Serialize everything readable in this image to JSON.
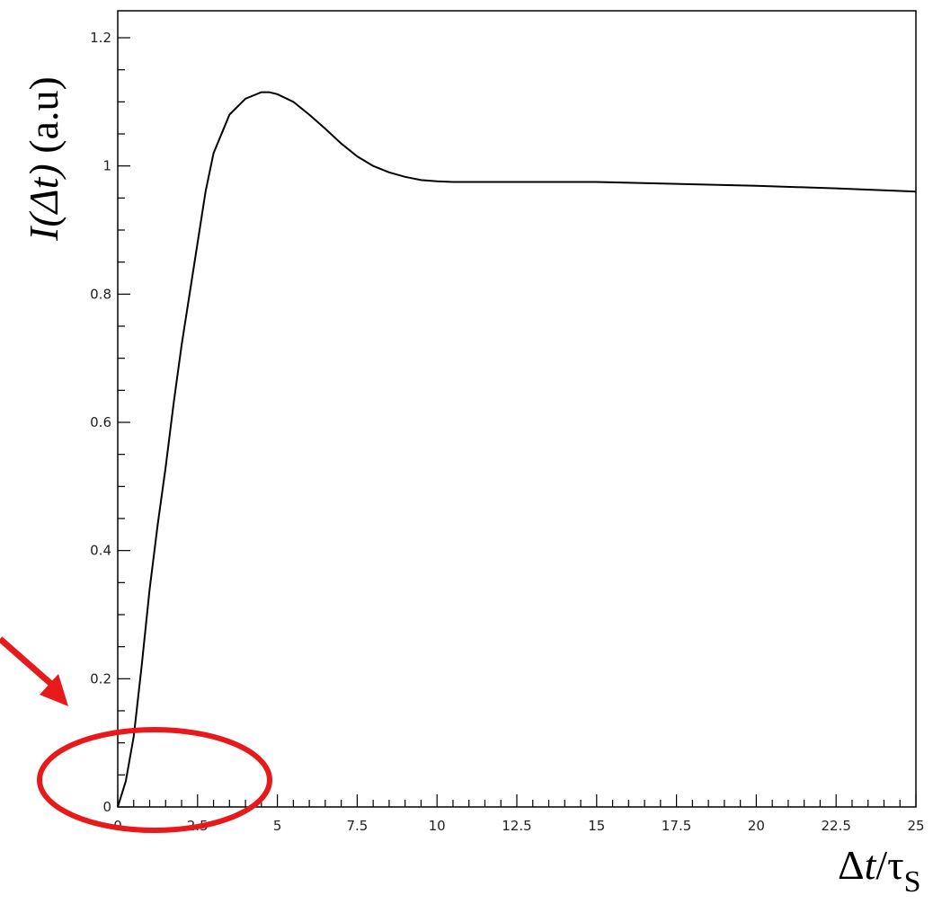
{
  "chart_data": {
    "type": "line",
    "title": "",
    "xlabel": {
      "symbol": "Δ",
      "var": "t",
      "slash": "/τ",
      "sub": "S"
    },
    "ylabel": {
      "prefix": "I(Δ",
      "var": "t",
      "suffix": ")",
      "units": " (a.u)"
    },
    "xlim": [
      0,
      25
    ],
    "ylim": [
      0,
      1.2
    ],
    "x_ticks": [
      0,
      2.5,
      5,
      7.5,
      10,
      12.5,
      15,
      17.5,
      20,
      22.5,
      25
    ],
    "x_tick_labels": [
      "0",
      "2.5",
      "5",
      "7.5",
      "10",
      "12.5",
      "15",
      "17.5",
      "20",
      "22.5",
      "25"
    ],
    "y_ticks": [
      0,
      0.2,
      0.4,
      0.6,
      0.8,
      1,
      1.2
    ],
    "y_tick_labels": [
      "0",
      "0.2",
      "0.4",
      "0.6",
      "0.8",
      "1",
      "1.2"
    ],
    "grid": false,
    "series": [
      {
        "x": [
          0,
          0.25,
          0.5,
          0.75,
          1.0,
          1.25,
          1.5,
          1.75,
          2.0,
          2.25,
          2.5,
          2.75,
          3.0,
          3.5,
          4.0,
          4.5,
          4.75,
          5.0,
          5.5,
          6.0,
          6.5,
          7.0,
          7.5,
          8.0,
          8.5,
          9.0,
          9.5,
          10.0,
          10.5,
          11.0,
          12.0,
          13.0,
          15.0,
          17.5,
          20.0,
          22.5,
          25.0
        ],
        "y": [
          0.0,
          0.04,
          0.11,
          0.22,
          0.34,
          0.44,
          0.53,
          0.63,
          0.72,
          0.8,
          0.88,
          0.96,
          1.02,
          1.08,
          1.105,
          1.115,
          1.115,
          1.112,
          1.1,
          1.08,
          1.058,
          1.035,
          1.015,
          1.0,
          0.99,
          0.983,
          0.978,
          0.976,
          0.975,
          0.975,
          0.975,
          0.975,
          0.975,
          0.972,
          0.969,
          0.965,
          0.96
        ],
        "color": "#000000"
      }
    ],
    "annotations": {
      "circle_color": "#e8191a",
      "arrow_color": "#e8191a"
    }
  }
}
